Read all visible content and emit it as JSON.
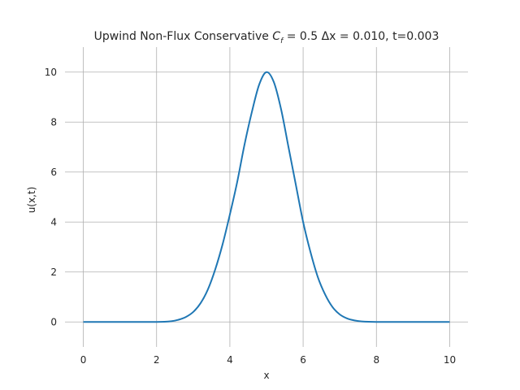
{
  "chart_data": {
    "type": "line",
    "title_prefix": "Upwind Non-Flux Conservative ",
    "title_courant_symbol": "C",
    "title_courant_sub": "f",
    "title_suffix": " = 0.5 Δx = 0.010, t=0.003",
    "xlabel": "x",
    "ylabel": "u(x,t)",
    "xlim": [
      -0.5,
      10.5
    ],
    "ylim": [
      -1.0,
      11.0
    ],
    "xticks": [
      0,
      2,
      4,
      6,
      8,
      10
    ],
    "yticks": [
      0,
      2,
      4,
      6,
      8,
      10
    ],
    "grid": true,
    "line_color": "#1f77b4",
    "series": [
      {
        "x": [
          0,
          1,
          2,
          2.4,
          2.6,
          2.8,
          3.0,
          3.2,
          3.4,
          3.6,
          3.8,
          4.0,
          4.2,
          4.4,
          4.6,
          4.8,
          5.0,
          5.2,
          5.4,
          5.6,
          5.8,
          6.0,
          6.2,
          6.4,
          6.6,
          6.8,
          7.0,
          7.2,
          7.4,
          7.6,
          8,
          9,
          10
        ],
        "values": [
          0.0,
          0.0,
          0.0,
          0.03,
          0.09,
          0.2,
          0.4,
          0.75,
          1.3,
          2.1,
          3.1,
          4.3,
          5.6,
          7.1,
          8.4,
          9.5,
          10.0,
          9.6,
          8.5,
          7.0,
          5.5,
          4.0,
          2.8,
          1.8,
          1.1,
          0.6,
          0.3,
          0.14,
          0.06,
          0.02,
          0.0,
          0.0,
          0.0
        ]
      }
    ]
  }
}
